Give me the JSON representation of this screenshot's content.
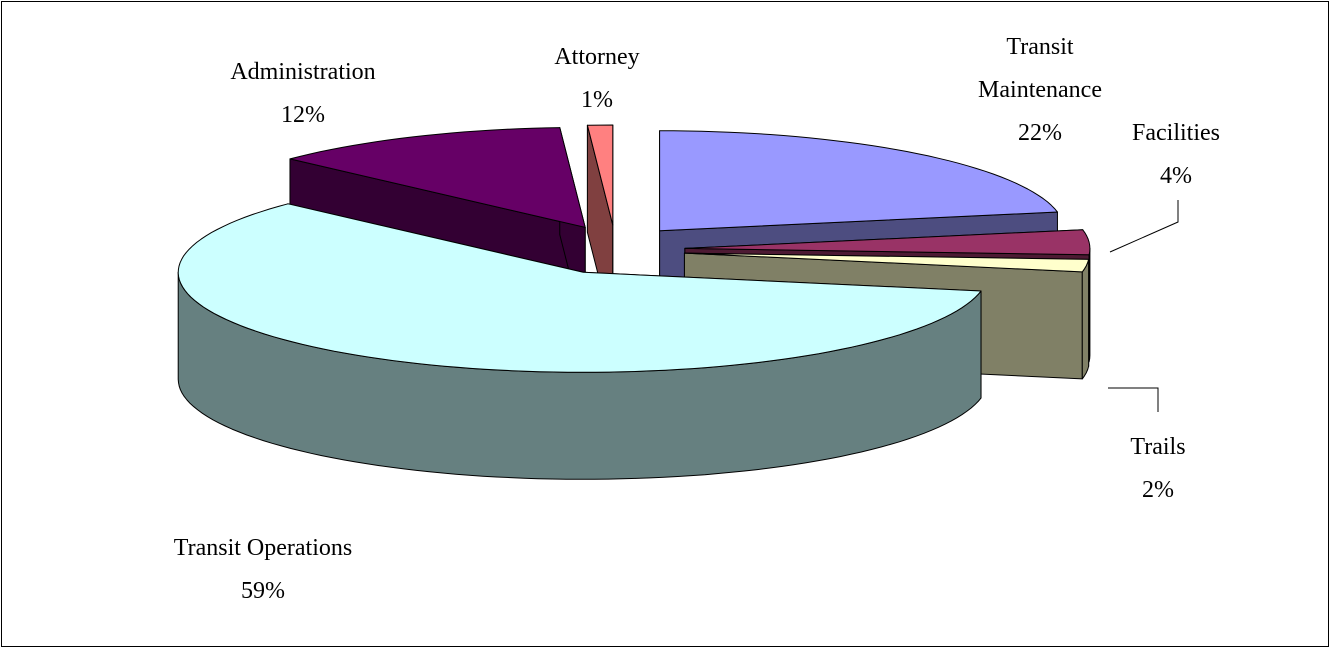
{
  "chart_data": {
    "type": "pie",
    "three_d": true,
    "exploded": true,
    "categories": [
      "Transit Maintenance",
      "Facilities",
      "Trails",
      "Transit Operations",
      "Administration",
      "Attorney"
    ],
    "values": [
      22,
      4,
      2,
      59,
      12,
      1
    ],
    "value_labels": [
      "22%",
      "4%",
      "2%",
      "59%",
      "12%",
      "1%"
    ],
    "colors": [
      "#9999ff",
      "#993366",
      "#ffffcc",
      "#ccffff",
      "#660066",
      "#ff8080"
    ]
  }
}
